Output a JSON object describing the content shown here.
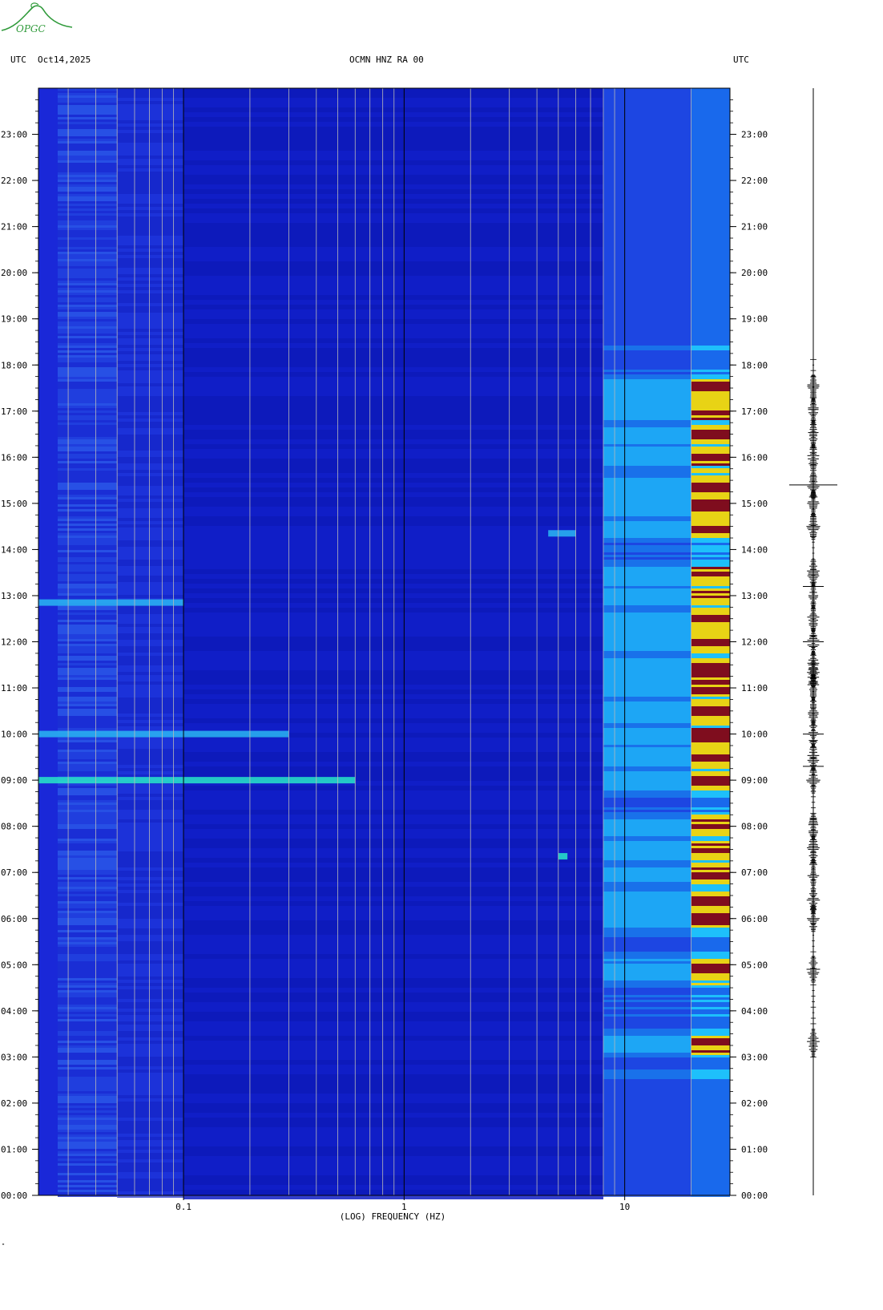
{
  "header": {
    "left_timezone": "UTC",
    "date": "Oct14,2025",
    "station": "OCMN HNZ RA 00",
    "right_timezone": "UTC"
  },
  "logo": {
    "text": "OPGC",
    "color": "#2f9a3a"
  },
  "footer_mark": "\"",
  "chart_data": {
    "type": "heatmap",
    "title": "OCMN HNZ RA 00",
    "xlabel": "(LOG) FREQUENCY (HZ)",
    "ylabel": "",
    "xscale": "log",
    "xlim": [
      0.022,
      30
    ],
    "x_ticks": [
      0.1,
      1,
      10
    ],
    "x_tick_labels": [
      "0.1",
      "1",
      "10"
    ],
    "ylim_hours": [
      0,
      24
    ],
    "y_tick_labels": [
      "00:00",
      "01:00",
      "02:00",
      "03:00",
      "04:00",
      "05:00",
      "06:00",
      "07:00",
      "08:00",
      "09:00",
      "10:00",
      "11:00",
      "12:00",
      "13:00",
      "14:00",
      "15:00",
      "16:00",
      "17:00",
      "18:00",
      "19:00",
      "20:00",
      "21:00",
      "22:00",
      "23:00"
    ],
    "colors": {
      "background": "#1a28d8",
      "low": "#0a14b8",
      "mid": "#1fd0ff",
      "high": "#ffe600",
      "max": "#8b0a0a",
      "gridline": "#b8b8b8"
    },
    "events": [
      {
        "hour": 9.0,
        "fmin": 0.022,
        "fmax": 0.6,
        "level": 0.65
      },
      {
        "hour": 10.0,
        "fmin": 0.022,
        "fmax": 0.3,
        "level": 0.5
      },
      {
        "hour": 12.85,
        "fmin": 0.022,
        "fmax": 0.1,
        "level": 0.45
      },
      {
        "hour": 14.35,
        "fmin": 4.5,
        "fmax": 6.0,
        "level": 0.5
      },
      {
        "hour": 7.35,
        "fmin": 5.0,
        "fmax": 5.5,
        "level": 0.6
      }
    ],
    "high_freq_activity_hours": [
      3.3,
      4.9,
      6.0,
      6.4,
      7.0,
      7.5,
      8.0,
      9.0,
      9.5,
      10.0,
      10.5,
      11.0,
      11.3,
      11.5,
      12.0,
      12.5,
      13.0,
      13.5,
      14.5,
      15.0,
      15.4,
      16.0,
      16.5,
      17.0,
      17.5
    ]
  },
  "seismogram": {
    "active_hours": [
      3.3,
      4.9,
      6.0,
      6.4,
      7.0,
      7.5,
      8.0,
      9.0,
      9.5,
      10.0,
      10.5,
      11.0,
      11.3,
      11.5,
      12.0,
      12.5,
      13.0,
      13.5,
      14.5,
      15.0,
      15.4,
      16.0,
      16.5,
      17.0,
      17.5
    ],
    "strong_hours": [
      15.4,
      10.0,
      9.3,
      12.0,
      13.2
    ],
    "color": "#000000"
  }
}
